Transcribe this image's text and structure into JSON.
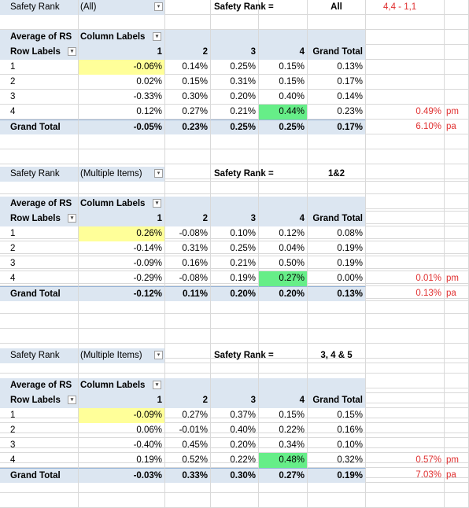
{
  "sections": [
    {
      "filter_label": "Safety Rank",
      "filter_value": "(All)",
      "filter_icon": "dropdown-arrow-icon",
      "rank_label": "Safety Rank =",
      "rank_value": "All",
      "note": "4,4 - 1,1",
      "pivot_title": "Average of RS",
      "column_labels": "Column Labels",
      "row_labels": "Row Labels",
      "headers": [
        "1",
        "2",
        "3",
        "4",
        "Grand Total"
      ],
      "rows": [
        {
          "label": "1",
          "values": [
            "-0.06%",
            "0.14%",
            "0.25%",
            "0.15%",
            "0.13%"
          ]
        },
        {
          "label": "2",
          "values": [
            "0.02%",
            "0.15%",
            "0.31%",
            "0.15%",
            "0.17%"
          ]
        },
        {
          "label": "3",
          "values": [
            "-0.33%",
            "0.30%",
            "0.20%",
            "0.40%",
            "0.14%"
          ]
        },
        {
          "label": "4",
          "values": [
            "0.12%",
            "0.27%",
            "0.21%",
            "0.44%",
            "0.23%"
          ]
        }
      ],
      "total": {
        "label": "Grand Total",
        "values": [
          "-0.05%",
          "0.23%",
          "0.25%",
          "0.25%",
          "0.17%"
        ]
      },
      "pm_value": "0.49%",
      "pm_unit": "pm",
      "pa_value": "6.10%",
      "pa_unit": "pa"
    },
    {
      "filter_label": "Safety Rank",
      "filter_value": "(Multiple Items)",
      "filter_icon": "filter-icon",
      "rank_label": "Safety Rank =",
      "rank_value": "1&2",
      "note": "",
      "pivot_title": "Average of RS",
      "column_labels": "Column Labels",
      "row_labels": "Row Labels",
      "headers": [
        "1",
        "2",
        "3",
        "4",
        "Grand Total"
      ],
      "rows": [
        {
          "label": "1",
          "values": [
            "0.26%",
            "-0.08%",
            "0.10%",
            "0.12%",
            "0.08%"
          ]
        },
        {
          "label": "2",
          "values": [
            "-0.14%",
            "0.31%",
            "0.25%",
            "0.04%",
            "0.19%"
          ]
        },
        {
          "label": "3",
          "values": [
            "-0.09%",
            "0.16%",
            "0.21%",
            "0.50%",
            "0.19%"
          ]
        },
        {
          "label": "4",
          "values": [
            "-0.29%",
            "-0.08%",
            "0.19%",
            "0.27%",
            "0.00%"
          ]
        }
      ],
      "total": {
        "label": "Grand Total",
        "values": [
          "-0.12%",
          "0.11%",
          "0.20%",
          "0.20%",
          "0.13%"
        ]
      },
      "pm_value": "0.01%",
      "pm_unit": "pm",
      "pa_value": "0.13%",
      "pa_unit": "pa"
    },
    {
      "filter_label": "Safety Rank",
      "filter_value": "(Multiple Items)",
      "filter_icon": "filter-icon",
      "rank_label": "Safety Rank =",
      "rank_value": "3, 4 & 5",
      "note": "",
      "pivot_title": "Average of RS",
      "column_labels": "Column Labels",
      "row_labels": "Row Labels",
      "headers": [
        "1",
        "2",
        "3",
        "4",
        "Grand Total"
      ],
      "rows": [
        {
          "label": "1",
          "values": [
            "-0.09%",
            "0.27%",
            "0.37%",
            "0.15%",
            "0.15%"
          ]
        },
        {
          "label": "2",
          "values": [
            "0.06%",
            "-0.01%",
            "0.40%",
            "0.22%",
            "0.16%"
          ]
        },
        {
          "label": "3",
          "values": [
            "-0.40%",
            "0.45%",
            "0.20%",
            "0.34%",
            "0.10%"
          ]
        },
        {
          "label": "4",
          "values": [
            "0.19%",
            "0.52%",
            "0.22%",
            "0.48%",
            "0.32%"
          ]
        }
      ],
      "total": {
        "label": "Grand Total",
        "values": [
          "-0.03%",
          "0.33%",
          "0.30%",
          "0.27%",
          "0.19%"
        ]
      },
      "pm_value": "0.57%",
      "pm_unit": "pm",
      "pa_value": "7.03%",
      "pa_unit": "pa"
    }
  ],
  "colors": {
    "header_fill": "#dce6f1",
    "highlight_yellow": "#ffff99",
    "highlight_green": "#66ee88",
    "accent_red": "#e03030",
    "gridline": "#d9d9d9"
  }
}
